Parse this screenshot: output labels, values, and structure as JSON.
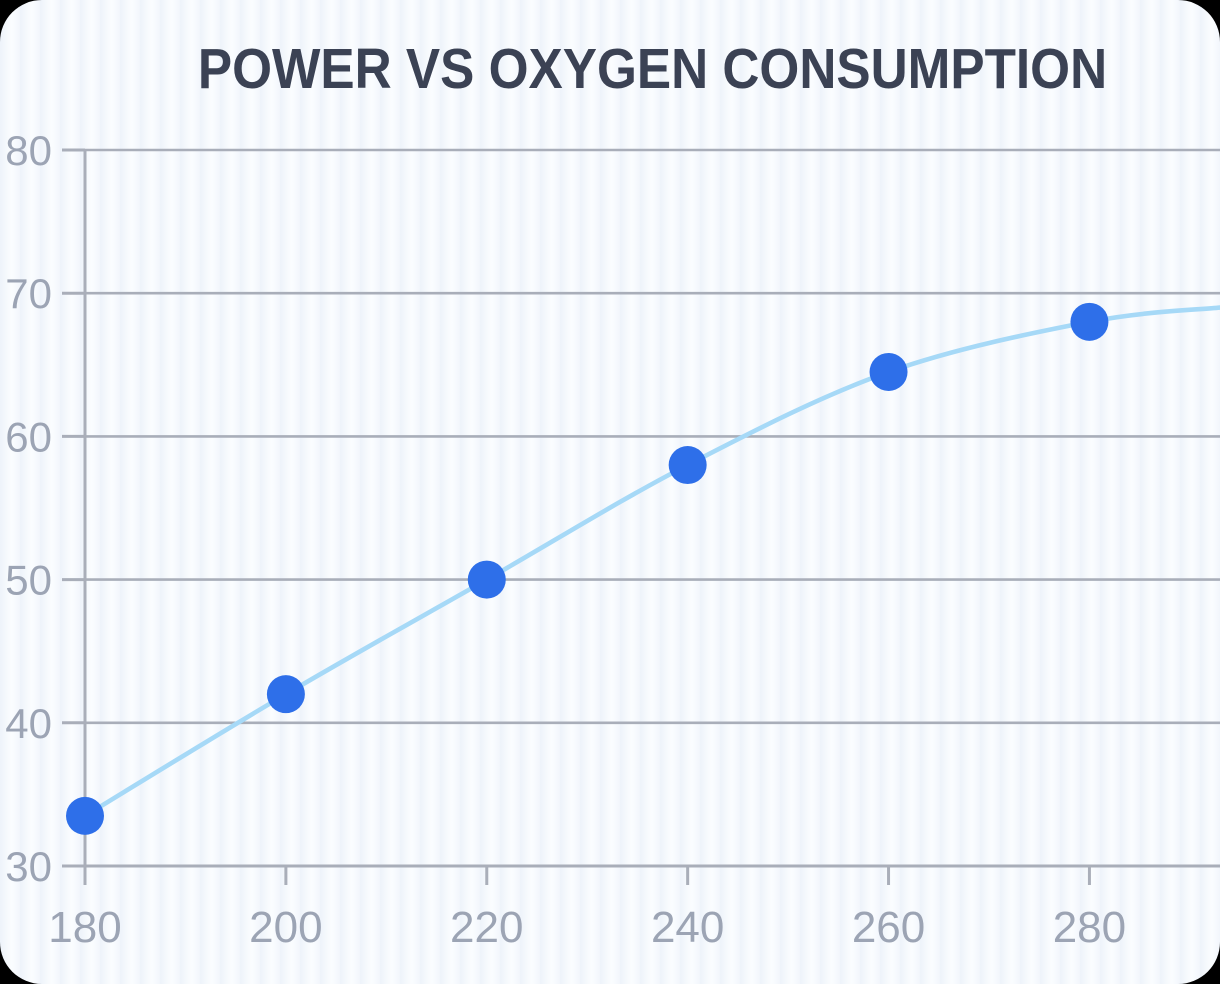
{
  "chart_data": {
    "type": "line",
    "title": "POWER VS OXYGEN CONSUMPTION",
    "xlabel": "",
    "ylabel": "",
    "x": [
      180,
      200,
      220,
      240,
      260,
      280
    ],
    "y": [
      33.5,
      42,
      50,
      58,
      64.5,
      68
    ],
    "x_ticks": [
      "180",
      "200",
      "220",
      "240",
      "260",
      "280"
    ],
    "y_ticks": [
      "30",
      "40",
      "50",
      "60",
      "70",
      "80"
    ],
    "xlim": [
      180,
      293
    ],
    "ylim": [
      30,
      80
    ],
    "grid": true,
    "legend": false,
    "trend_extension": {
      "x": 293,
      "y": 69
    },
    "colors": {
      "title": "#3b4254",
      "marker": "#2e6fe9",
      "line": "#a6d9f7",
      "grid": "#a9aeb9",
      "tick_label": "#9ca4b4",
      "background": "#f5f9fd"
    }
  }
}
